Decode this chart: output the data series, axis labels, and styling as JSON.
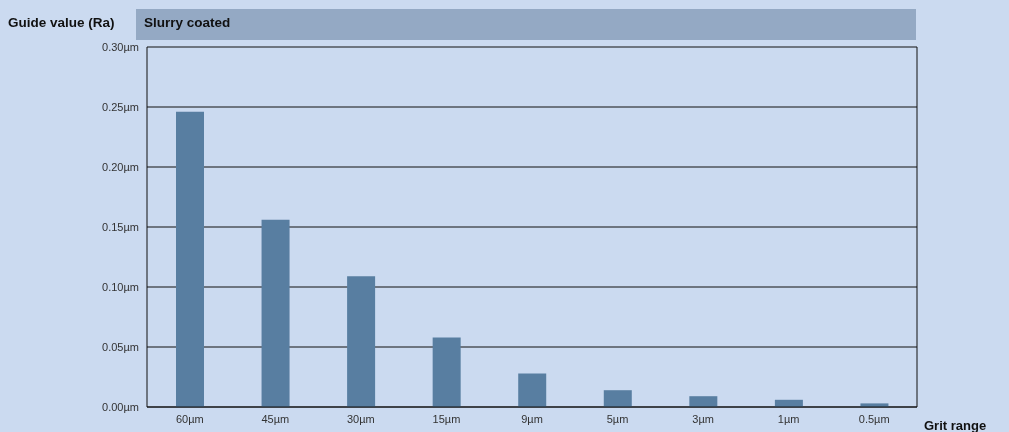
{
  "chart_data": {
    "type": "bar",
    "title": "Slurry coated",
    "ylabel": "Guide value (Ra)",
    "xlabel": "Grit range",
    "categories": [
      "60µm",
      "45µm",
      "30µm",
      "15µm",
      "9µm",
      "5µm",
      "3µm",
      "1µm",
      "0.5µm"
    ],
    "values": [
      0.246,
      0.156,
      0.109,
      0.058,
      0.028,
      0.014,
      0.009,
      0.006,
      0.003
    ],
    "color": "#587ea1",
    "ylim": [
      0,
      0.3
    ],
    "yticks": [
      {
        "value": 0,
        "label": "0.00µm"
      },
      {
        "value": 0.05,
        "label": "0.05µm"
      },
      {
        "value": 0.1,
        "label": "0.10µm"
      },
      {
        "value": 0.15,
        "label": "0.15µm"
      },
      {
        "value": 0.2,
        "label": "0.20µm"
      },
      {
        "value": 0.25,
        "label": "0.25µm"
      },
      {
        "value": 0.3,
        "label": "0.30µm"
      }
    ],
    "grid": "y"
  }
}
